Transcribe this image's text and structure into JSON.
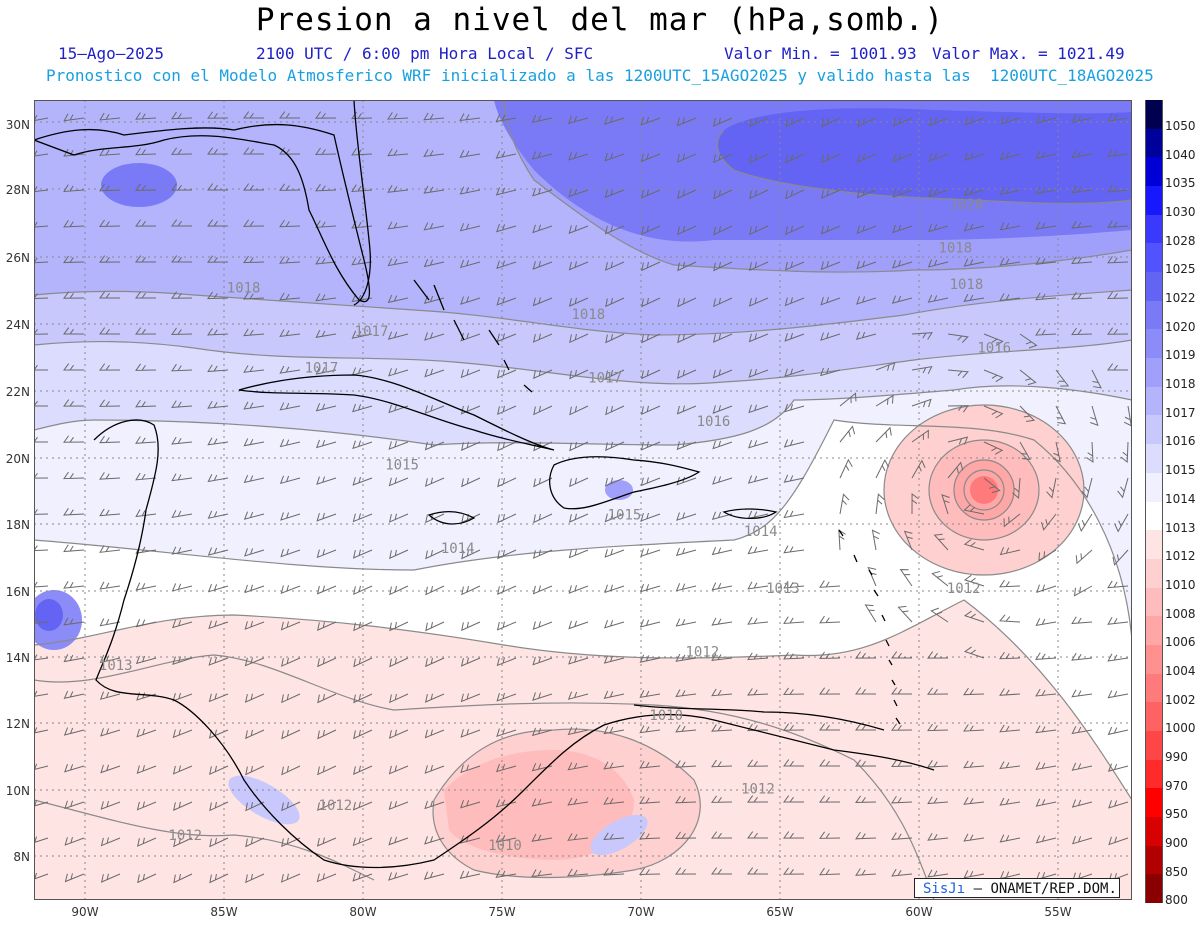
{
  "header": {
    "title": "Presion a nivel del mar (hPa,somb.)",
    "date": "15—Ago—2025",
    "time_info": "2100 UTC / 6:00 pm Hora Local / SFC",
    "min_value": "Valor Min. = 1001.93",
    "max_value": "Valor Max. = 1021.49",
    "forecast_note": "Pronostico con el Modelo Atmosferico WRF inicializado a las 1200UTC_15AGO2025 y valido hasta las  1200UTC_18AGO2025"
  },
  "map": {
    "lat_labels": [
      "30N",
      "28N",
      "26N",
      "24N",
      "22N",
      "20N",
      "18N",
      "16N",
      "14N",
      "12N",
      "10N",
      "8N"
    ],
    "lon_labels": [
      "90W",
      "85W",
      "80W",
      "75W",
      "70W",
      "65W",
      "60W",
      "55W"
    ],
    "isobar_labels": [
      {
        "text": "1020",
        "lon": -58.9,
        "lat": 27.4
      },
      {
        "text": "1018",
        "lon": -59.3,
        "lat": 26.1
      },
      {
        "text": "1018",
        "lon": -58.9,
        "lat": 25.0
      },
      {
        "text": "1018",
        "lon": -84.9,
        "lat": 24.9
      },
      {
        "text": "1018",
        "lon": -72.5,
        "lat": 24.1
      },
      {
        "text": "1017",
        "lon": -80.3,
        "lat": 23.6
      },
      {
        "text": "1017",
        "lon": -82.1,
        "lat": 22.5
      },
      {
        "text": "1017",
        "lon": -71.9,
        "lat": 22.2
      },
      {
        "text": "1016",
        "lon": -57.9,
        "lat": 23.1
      },
      {
        "text": "1016",
        "lon": -68.0,
        "lat": 20.9
      },
      {
        "text": "1015",
        "lon": -79.2,
        "lat": 19.6
      },
      {
        "text": "1015",
        "lon": -71.2,
        "lat": 18.1
      },
      {
        "text": "1014",
        "lon": -66.3,
        "lat": 17.6
      },
      {
        "text": "1014",
        "lon": -77.2,
        "lat": 17.1
      },
      {
        "text": "1013",
        "lon": -65.5,
        "lat": 15.9
      },
      {
        "text": "1013",
        "lon": -89.5,
        "lat": 13.6
      },
      {
        "text": "1012",
        "lon": -59.0,
        "lat": 15.9
      },
      {
        "text": "1012",
        "lon": -68.4,
        "lat": 14.0
      },
      {
        "text": "1012",
        "lon": -81.6,
        "lat": 9.4
      },
      {
        "text": "1012",
        "lon": -87.0,
        "lat": 8.5
      },
      {
        "text": "1012",
        "lon": -66.4,
        "lat": 9.9
      },
      {
        "text": "1010",
        "lon": -69.7,
        "lat": 12.1
      },
      {
        "text": "1010",
        "lon": -75.5,
        "lat": 8.2
      }
    ],
    "low_center": {
      "lon": -57.8,
      "lat": 19.0
    }
  },
  "legend": {
    "levels": [
      "1050",
      "1040",
      "1035",
      "1030",
      "1028",
      "1025",
      "1022",
      "1020",
      "1019",
      "1018",
      "1017",
      "1016",
      "1015",
      "1014",
      "1013",
      "1012",
      "1010",
      "1008",
      "1006",
      "1004",
      "1002",
      "1000",
      "990",
      "970",
      "950",
      "900",
      "850",
      "800"
    ],
    "colors": [
      "#000050",
      "#00009a",
      "#0000d6",
      "#1818ff",
      "#3a3aff",
      "#5252ff",
      "#6464f4",
      "#7a7af6",
      "#8c8cf8",
      "#a0a0fa",
      "#b4b4fc",
      "#c8c8fd",
      "#dcdcfe",
      "#f0f0ff",
      "#ffffff",
      "#ffe4e4",
      "#ffd0d0",
      "#ffbcbc",
      "#ffa6a6",
      "#ff9090",
      "#ff7a7a",
      "#ff6262",
      "#ff4646",
      "#ff2a2a",
      "#ff0000",
      "#d80000",
      "#b00000",
      "#8a0000"
    ]
  },
  "credit": {
    "part1": "SisJı",
    "part2": " — ONAMET/REP.DOM."
  },
  "colors": {
    "title_text": "#000000",
    "info_text": "#2020c8",
    "forecast_text": "#18a0e0",
    "land_outline": "#000000",
    "grid": "#888888",
    "isobar": "#8a8a8a",
    "wind_barb": "#6a6a6a"
  }
}
